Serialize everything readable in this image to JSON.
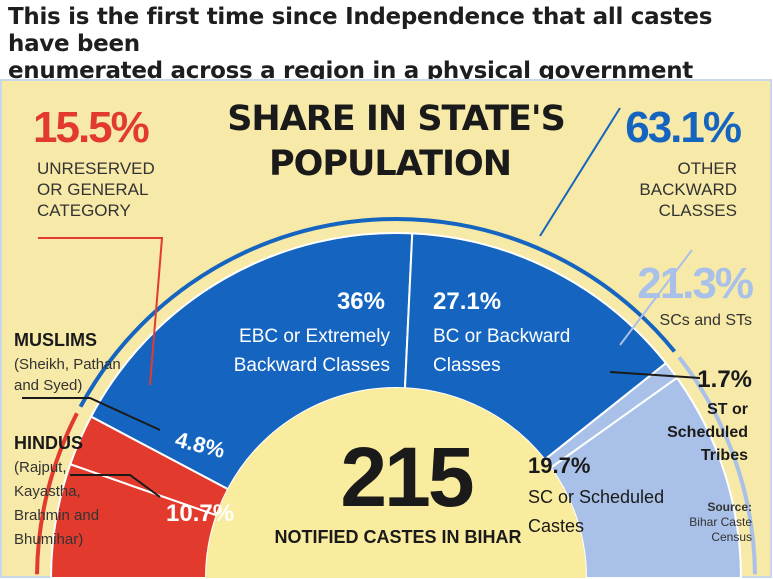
{
  "headline": {
    "line1": "This is the first time since Independence that all castes have been",
    "line2": "enumerated across a region in a physical government headcount"
  },
  "colors": {
    "background": "#f7e9a8",
    "red": "#e23b2e",
    "blue": "#1565c0",
    "light_blue": "#a9c1e8",
    "center": "#f9ec9e",
    "title_text": "#1a1a1a"
  },
  "chart_data": {
    "type": "pie",
    "subtype": "semicircle",
    "title": "SHARE IN STATE'S POPULATION",
    "slices": [
      {
        "label": "HINDUS (Rajput, Kayastha, Brahmin and Bhumihar)",
        "value": 10.7,
        "display": "10.7%",
        "color": "#e23b2e"
      },
      {
        "label": "MUSLIMS (Sheikh, Pathan and Syed)",
        "value": 4.8,
        "display": "4.8%",
        "color": "#e23b2e"
      },
      {
        "label": "EBC or Extremely Backward Classes",
        "value": 36,
        "display": "36%",
        "color": "#1565c0"
      },
      {
        "label": "BC or Backward Classes",
        "value": 27.1,
        "display": "27.1%",
        "color": "#1565c0"
      },
      {
        "label": "ST or Scheduled Tribes",
        "value": 1.7,
        "display": "1.7%",
        "color": "#a9c1e8"
      },
      {
        "label": "SC or Scheduled Castes",
        "value": 19.7,
        "display": "19.7%",
        "color": "#a9c1e8"
      }
    ],
    "groups": [
      {
        "label": "UNRESERVED OR GENERAL CATEGORY",
        "value": 15.5,
        "display": "15.5%"
      },
      {
        "label": "OTHER BACKWARD CLASSES",
        "value": 63.1,
        "display": "63.1%"
      },
      {
        "label": "SCs and STs",
        "value": 21.3,
        "display": "21.3%"
      }
    ],
    "center": {
      "value": "215",
      "label": "NOTIFIED CASTES IN BIHAR"
    }
  },
  "labels": {
    "title_line1": "SHARE IN STATE'S",
    "title_line2": "POPULATION",
    "unreserved_pct": "15.5%",
    "unreserved_l1": "UNRESERVED",
    "unreserved_l2": "OR GENERAL",
    "unreserved_l3": "CATEGORY",
    "obc_pct": "63.1%",
    "obc_l1": "OTHER",
    "obc_l2": "BACKWARD",
    "obc_l3": "CLASSES",
    "scst_pct": "21.3%",
    "scst_label": "SCs and STs",
    "muslims_title": "MUSLIMS",
    "muslims_l1": "(Sheikh, Pathan",
    "muslims_l2": "and Syed)",
    "hindus_title": "HINDUS",
    "hindus_l1": "(Rajput,",
    "hindus_l2": "Kayastha,",
    "hindus_l3": "Brahmin and",
    "hindus_l4": "Bhumihar)",
    "ebc_pct": "36%",
    "ebc_l1": "EBC or Extremely",
    "ebc_l2": "Backward Classes",
    "bc_pct": "27.1%",
    "bc_l1": "BC or Backward",
    "bc_l2": "Classes",
    "muslims_pct": "4.8%",
    "hindus_pct": "10.7%",
    "st_pct": "1.7%",
    "st_l1": "ST or",
    "st_l2": "Scheduled",
    "st_l3": "Tribes",
    "sc_pct": "19.7%",
    "sc_l1": "SC or Scheduled",
    "sc_l2": "Castes",
    "center_number": "215",
    "center_caption": "NOTIFIED CASTES IN BIHAR",
    "source_l1": "Source:",
    "source_l2": "Bihar Caste",
    "source_l3": "Census"
  }
}
